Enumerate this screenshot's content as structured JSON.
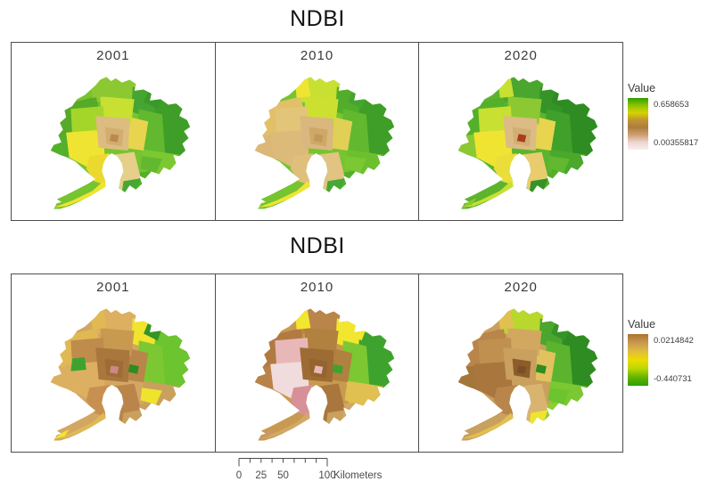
{
  "page": {
    "background": "#ffffff"
  },
  "figures": [
    {
      "title": "NDBI",
      "panels": [
        {
          "year": "2001",
          "region_colors": [
            "#76c42f",
            "#54b02a",
            "#56aa28",
            "#8cc832",
            "#46a432",
            "#3f9e28",
            "#62b82e",
            "#7cc832",
            "#52b02a",
            "#e6cf8a",
            "#e8d44e",
            "#c8e032",
            "#a4d62a",
            "#f0e432",
            "#ecd92e",
            "#dcbc80",
            "#d2ae6e",
            "#b98a4e",
            "#f0e432",
            null,
            "#8cc832",
            "#3a9a28",
            "#62b82e",
            "#46a832",
            null,
            null
          ]
        },
        {
          "year": "2010",
          "region_colors": [
            "#76c42f",
            "#dcb878",
            "#e2c068",
            "#c8e032",
            "#52ae2a",
            "#3f9e28",
            "#62b82e",
            "#6cc02e",
            "#52b02a",
            "#e2c382",
            "#e0d055",
            "#cce032",
            "#e2c578",
            "#dcba7a",
            "#e0be7c",
            "#d9b77e",
            "#cfa868",
            "#c09858",
            "#f0e432",
            null,
            "#f0e432",
            "#46a432",
            "#7cc832",
            "#46a832",
            null,
            null
          ]
        },
        {
          "year": "2020",
          "region_colors": [
            "#5cb42e",
            "#8cc832",
            "#54b02a",
            "#4aa62e",
            "#359328",
            "#2e8c22",
            "#3fa02a",
            "#4aa82c",
            "#52b02a",
            "#e8cc6e",
            "#e8d44e",
            "#8cc832",
            "#c8e032",
            "#f0e432",
            "#ecde3a",
            "#dcbc84",
            "#d2ae72",
            "#a83c1e",
            "#c8e032",
            "#8cc832",
            "#c8e032",
            "#2e8c22",
            "#62b82e",
            "#359328",
            null,
            null
          ]
        }
      ],
      "legend": {
        "title": "Value",
        "max_label": "0.658653",
        "min_label": "0.00355817",
        "gradient": [
          "#2f9e00",
          "#8cc400",
          "#d6d300",
          "#bf9433",
          "#ad7d3e",
          "#cf9f74",
          "#ecd6d0",
          "#f8efee"
        ]
      }
    },
    {
      "title": "NDBI",
      "panels": [
        {
          "year": "2001",
          "region_colors": [
            "#d2a762",
            "#dcb060",
            "#e0b954",
            "#dcb060",
            "#f0e42e",
            "#6cc42e",
            "#7cc832",
            "#c9a05e",
            "#caa05e",
            "#b9854a",
            "#b9854a",
            "#c89a50",
            "#c08c4c",
            "#dcb060",
            "#c89050",
            "#a9763e",
            "#9c6c34",
            "#cc8888",
            "#e0b954",
            "#f0e42e",
            "#e0b954",
            "#359328",
            "#eee42e",
            "#caa05e",
            "#2e8c22",
            "#3da32e"
          ]
        },
        {
          "year": "2010",
          "region_colors": [
            "#c89a50",
            "#b88248",
            "#b07a42",
            "#b9854a",
            "#f2e62e",
            "#3da32e",
            "#7cc832",
            "#e0c050",
            "#d2a868",
            "#a9763e",
            "#b0813f",
            "#b0813f",
            "#e8b8b8",
            "#f0dcdc",
            "#d89098",
            "#9c6c34",
            "#94642e",
            "#e8b8b8",
            "#d2a868",
            "#c89868",
            "#f2e62e",
            "#f2e62e",
            "#e0c050",
            "#c9a05e",
            "#3da32e",
            null
          ]
        },
        {
          "year": "2020",
          "region_colors": [
            "#c9a05e",
            "#a5763a",
            "#b9854a",
            "#b8d82e",
            "#4aa62e",
            "#2e8c22",
            "#5cb42e",
            "#7cc832",
            "#8cd02e",
            "#d8b470",
            "#e2c25e",
            "#d2a860",
            "#c09050",
            "#a9763e",
            "#b9854a",
            "#c9a05e",
            "#8c5c2c",
            "#7c4e24",
            "#e0c050",
            null,
            "#e0c050",
            "#359328",
            "#6cc42e",
            "#eee42e",
            "#2e8c22",
            null
          ]
        }
      ],
      "legend": {
        "title": "Value",
        "max_label": "0.0214842",
        "min_label": "-0.440731",
        "gradient": [
          "#ab7231",
          "#c99850",
          "#e0bc3e",
          "#ecdc00",
          "#bcd800",
          "#66b400",
          "#2f9e00"
        ]
      }
    }
  ],
  "scalebar": {
    "tick_labels": [
      "0",
      "25",
      "50",
      "100"
    ],
    "unit": "Kilometers"
  }
}
